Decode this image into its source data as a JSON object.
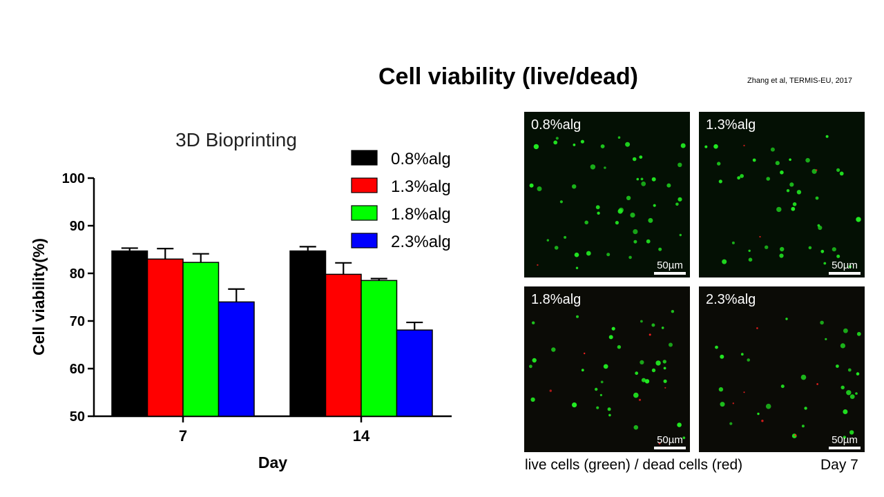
{
  "slide": {
    "title": "Cell viability (live/dead)",
    "citation": "Zhang et al, TERMIS-EU, 2017"
  },
  "chart_data": {
    "type": "bar",
    "title": "3D Bioprinting",
    "xlabel": "Day",
    "ylabel": "Cell viability(%)",
    "ylim": [
      50,
      100
    ],
    "yticks": [
      "50",
      "60",
      "70",
      "80",
      "90",
      "100"
    ],
    "categories": [
      "7",
      "14"
    ],
    "series": [
      {
        "name": "0.8%alg",
        "color": "#000000",
        "values": [
          84.7,
          84.7
        ],
        "errors": [
          0.6,
          0.9
        ]
      },
      {
        "name": "1.3%alg",
        "color": "#ff0000",
        "values": [
          83.0,
          79.8
        ],
        "errors": [
          2.2,
          2.4
        ]
      },
      {
        "name": "1.8%alg",
        "color": "#00ff00",
        "values": [
          82.3,
          78.5
        ],
        "errors": [
          1.8,
          0.4
        ]
      },
      {
        "name": "2.3%alg",
        "color": "#0000ff",
        "values": [
          74.0,
          68.1
        ],
        "errors": [
          2.7,
          1.6
        ]
      }
    ],
    "legend_position": "top-right",
    "error_bars": true,
    "grid": false
  },
  "micrographs": {
    "panels": [
      {
        "label": "0.8%alg",
        "scale": "50µm"
      },
      {
        "label": "1.3%alg",
        "scale": "50µm"
      },
      {
        "label": "1.8%alg",
        "scale": "50µm"
      },
      {
        "label": "2.3%alg",
        "scale": "50µm"
      }
    ],
    "caption": "live cells (green) / dead cells (red)",
    "timepoint": "Day 7",
    "live_color": "#22ee22",
    "dead_color": "#ff2020"
  }
}
